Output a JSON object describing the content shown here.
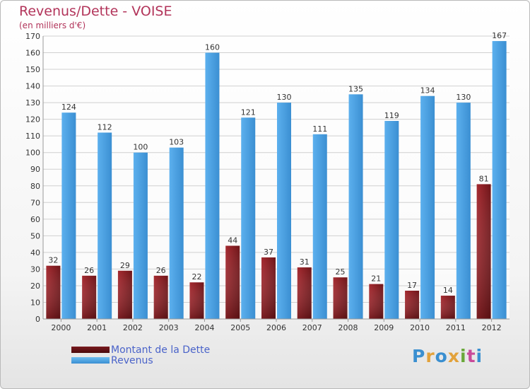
{
  "title": "Revenus/Dette - VOISE",
  "subtitle": "(en milliers d'€)",
  "logo_text": "Proxiti",
  "colors": {
    "debt": "#8e1d24",
    "revenue": "#4ea3e4",
    "title": "#b2345a",
    "legend_text": "#4a63c9"
  },
  "chart_data": {
    "type": "bar",
    "title": "Revenus/Dette - VOISE",
    "ylabel": "(en milliers d'€)",
    "categories": [
      "2000",
      "2001",
      "2002",
      "2003",
      "2004",
      "2005",
      "2006",
      "2007",
      "2008",
      "2009",
      "2010",
      "2011",
      "2012"
    ],
    "ylim": [
      0,
      170
    ],
    "yticks": [
      0,
      10,
      20,
      30,
      40,
      50,
      60,
      70,
      80,
      90,
      100,
      110,
      120,
      130,
      140,
      150,
      160,
      170
    ],
    "grid": true,
    "legend_position": "bottom-left",
    "series": [
      {
        "name": "Montant de la Dette",
        "values": [
          32,
          26,
          29,
          26,
          22,
          44,
          37,
          31,
          25,
          21,
          17,
          14,
          81
        ]
      },
      {
        "name": "Revenus",
        "values": [
          124,
          112,
          100,
          103,
          160,
          121,
          130,
          111,
          135,
          119,
          134,
          130,
          167
        ]
      }
    ]
  }
}
